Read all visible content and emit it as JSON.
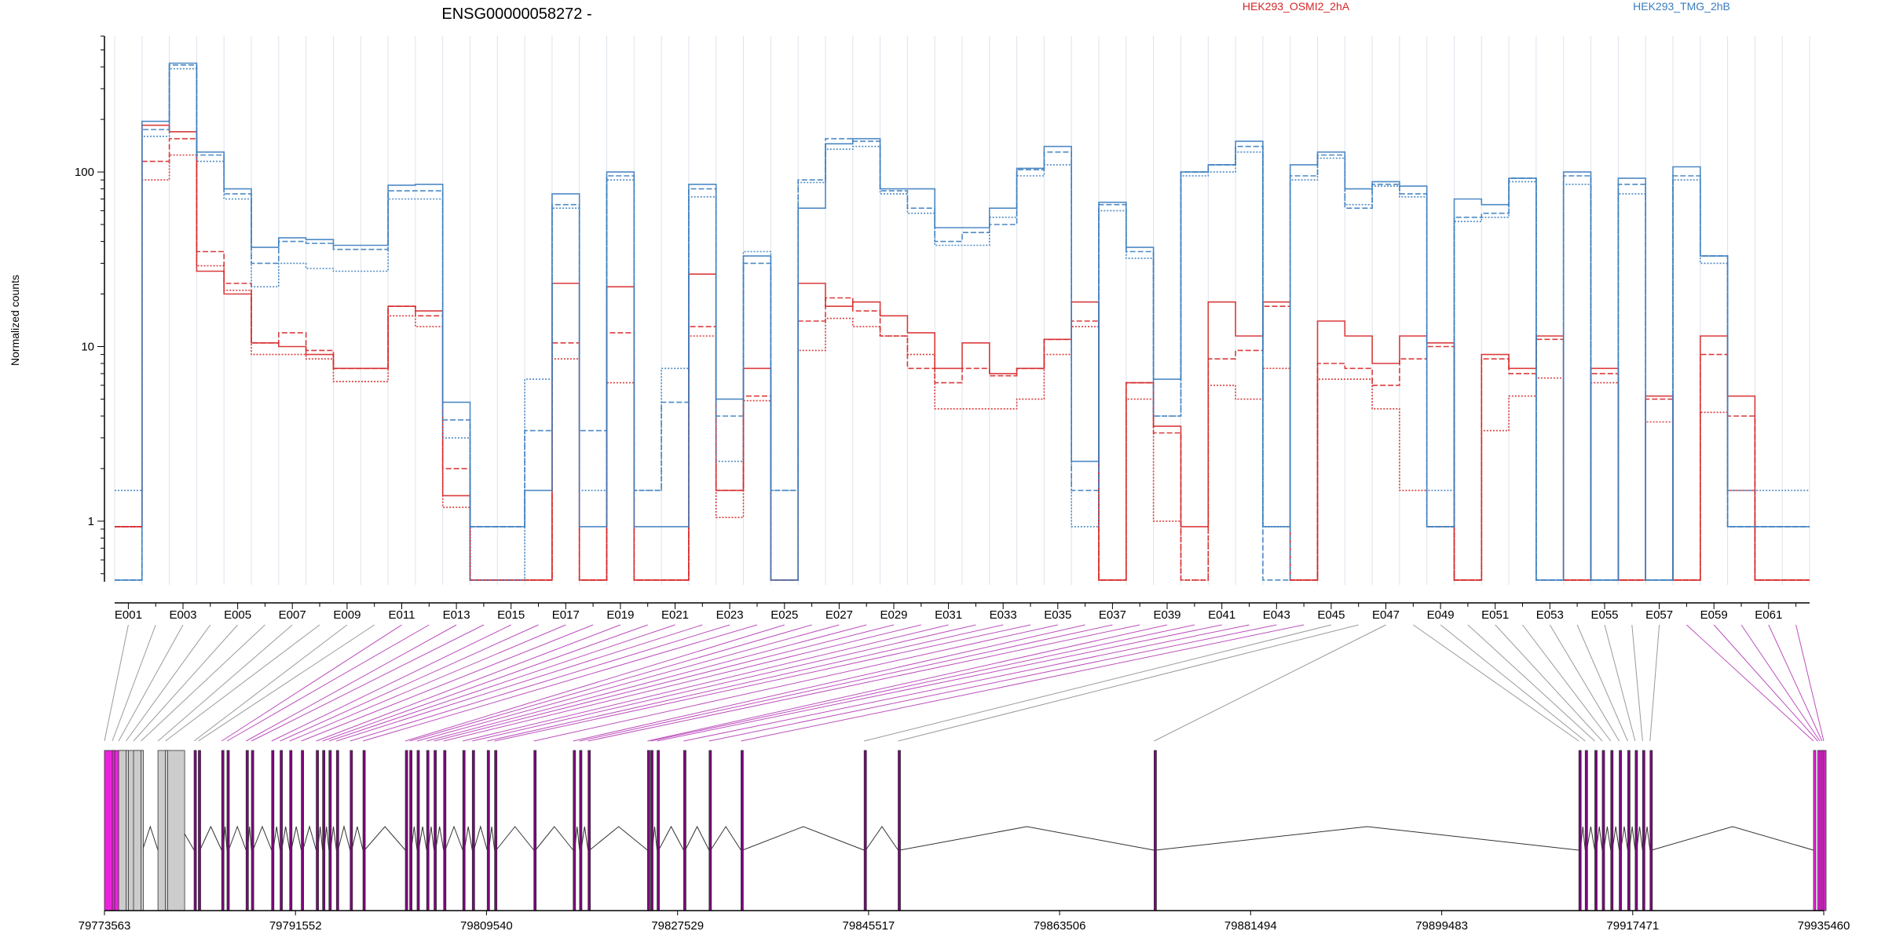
{
  "title": "ENSG00000058272 -",
  "ylabel": "Normalized counts",
  "colors": {
    "osmi": "#d62728",
    "tmg": "#3b7dbf",
    "gene_exon": "#ee22dd",
    "grid": "#dde3ec"
  },
  "chart_data": {
    "type": "line",
    "title": "ENSG00000058272 -",
    "ylabel": "Normalized counts",
    "ylog": true,
    "ylim": [
      0.45,
      600
    ],
    "yticks": [
      1,
      10,
      100
    ],
    "legend": [
      {
        "name": "HEK293_OSMI2_2hA",
        "color": "#d62728"
      },
      {
        "name": "HEK293_TMG_2hB",
        "color": "#3b7dbf"
      }
    ],
    "exon_labels": [
      "E001",
      "E003",
      "E005",
      "E007",
      "E009",
      "E011",
      "E013",
      "E015",
      "E017",
      "E019",
      "E021",
      "E023",
      "E025",
      "E027",
      "E029",
      "E031",
      "E033",
      "E035",
      "E037",
      "E039",
      "E041",
      "E043",
      "E045",
      "E047",
      "E049",
      "E051",
      "E053",
      "E055",
      "E057",
      "E059",
      "E061"
    ],
    "exon_count": 62,
    "genomic_ticks": [
      "79773563",
      "79791552",
      "79809540",
      "79827529",
      "79845517",
      "79863506",
      "79881494",
      "79899483",
      "79917471",
      "79935460"
    ],
    "genome_range": [
      79773563,
      79935460
    ],
    "series": [
      {
        "name": "HEK293_OSMI2_2hA",
        "group": "osmi",
        "style": "solid",
        "values": [
          0.93,
          185,
          170,
          27,
          20,
          10.5,
          10,
          9,
          7.5,
          7.5,
          17,
          16,
          1.4,
          0.46,
          0.46,
          0.46,
          23,
          0.46,
          22,
          0.46,
          0.46,
          26,
          1.5,
          7.5,
          0.46,
          23,
          17,
          18,
          15,
          12,
          7.5,
          10.5,
          7,
          7.5,
          11,
          18,
          0.46,
          6.2,
          3.5,
          0.93,
          18,
          11.5,
          18,
          0.46,
          14,
          11.5,
          8,
          11.5,
          10.5,
          0.46,
          9,
          7.5,
          11.5,
          0.46,
          7.5,
          0.46,
          5.2,
          0.46,
          11.5,
          5.2,
          0.46,
          0.46
        ]
      },
      {
        "name": "HEK293_OSMI2_2hA",
        "group": "osmi",
        "style": "dashed",
        "values": [
          0.93,
          115,
          155,
          35,
          23,
          10.5,
          12,
          9.5,
          7.5,
          7.5,
          17,
          15,
          2,
          0.46,
          0.46,
          0.46,
          10.5,
          0.46,
          12,
          0.46,
          0.46,
          13,
          1.5,
          5.2,
          0.46,
          14,
          19,
          16,
          11.5,
          7.5,
          6.2,
          7.5,
          6.8,
          7.5,
          11,
          14,
          0.46,
          6.2,
          3.2,
          0.46,
          8.5,
          9.5,
          17,
          0.46,
          8,
          7.5,
          6,
          8.5,
          10,
          0.46,
          8.5,
          7,
          11,
          0.46,
          7,
          0.46,
          5,
          0.46,
          9,
          4,
          0.46,
          0.46
        ]
      },
      {
        "name": "HEK293_OSMI2_2hA",
        "group": "osmi",
        "style": "dotted",
        "values": [
          0.93,
          90,
          125,
          29,
          21,
          9,
          9,
          8.5,
          6.3,
          6.3,
          15,
          13,
          1.2,
          0.46,
          0.46,
          0.46,
          8.5,
          0.46,
          6.2,
          0.46,
          0.46,
          11.5,
          1.05,
          4.9,
          0.46,
          9.5,
          14.5,
          13,
          11.5,
          9,
          4.4,
          4.4,
          4.4,
          5,
          9,
          13,
          0.46,
          5,
          1,
          0.46,
          6,
          5,
          7.5,
          0.46,
          6.5,
          6.5,
          4.4,
          1.5,
          0.93,
          0.46,
          3.3,
          5.2,
          6.6,
          0.46,
          6.2,
          0.46,
          3.7,
          0.46,
          4.2,
          1.5,
          0.46,
          0.46
        ]
      },
      {
        "name": "HEK293_TMG_2hB",
        "group": "tmg",
        "style": "solid",
        "values": [
          0.46,
          195,
          420,
          130,
          80,
          37,
          42,
          41,
          38,
          38,
          84,
          85,
          4.8,
          0.93,
          0.93,
          1.5,
          75,
          0.93,
          100,
          0.93,
          0.93,
          85,
          5,
          33,
          0.46,
          62,
          145,
          155,
          80,
          80,
          48,
          48,
          62,
          105,
          140,
          2.2,
          67,
          37,
          6.5,
          100,
          110,
          150,
          0.93,
          110,
          130,
          80,
          88,
          83,
          0.93,
          70,
          65,
          92,
          0.46,
          100,
          0.46,
          92,
          0.46,
          107,
          33,
          0.93,
          0.93,
          0.93
        ]
      },
      {
        "name": "HEK293_TMG_2hB",
        "group": "tmg",
        "style": "dashed",
        "values": [
          0.46,
          175,
          410,
          125,
          75,
          30,
          40,
          39,
          36,
          36,
          78,
          78,
          3.8,
          0.93,
          0.93,
          3.3,
          65,
          3.3,
          95,
          1.5,
          4.8,
          80,
          4,
          30,
          1.5,
          90,
          155,
          150,
          78,
          62,
          40,
          45,
          50,
          103,
          130,
          1.5,
          65,
          35,
          4,
          100,
          110,
          140,
          0.46,
          95,
          125,
          62,
          85,
          75,
          0.93,
          55,
          58,
          92,
          0.46,
          95,
          0.46,
          85,
          0.46,
          95,
          33,
          0.93,
          0.93,
          0.93
        ]
      },
      {
        "name": "HEK293_TMG_2hB",
        "group": "tmg",
        "style": "dotted",
        "values": [
          1.5,
          160,
          390,
          115,
          70,
          22,
          30,
          28,
          27,
          27,
          70,
          70,
          3,
          0.46,
          0.46,
          6.5,
          62,
          1.5,
          90,
          1.5,
          7.5,
          72,
          2.2,
          35,
          1.5,
          87,
          135,
          140,
          75,
          58,
          38,
          38,
          55,
          95,
          110,
          0.93,
          60,
          32,
          4,
          95,
          100,
          130,
          0.93,
          90,
          120,
          65,
          83,
          72,
          1.5,
          52,
          55,
          88,
          0.46,
          85,
          0.46,
          75,
          0.46,
          90,
          30,
          1.5,
          1.5,
          1.5
        ]
      }
    ]
  }
}
